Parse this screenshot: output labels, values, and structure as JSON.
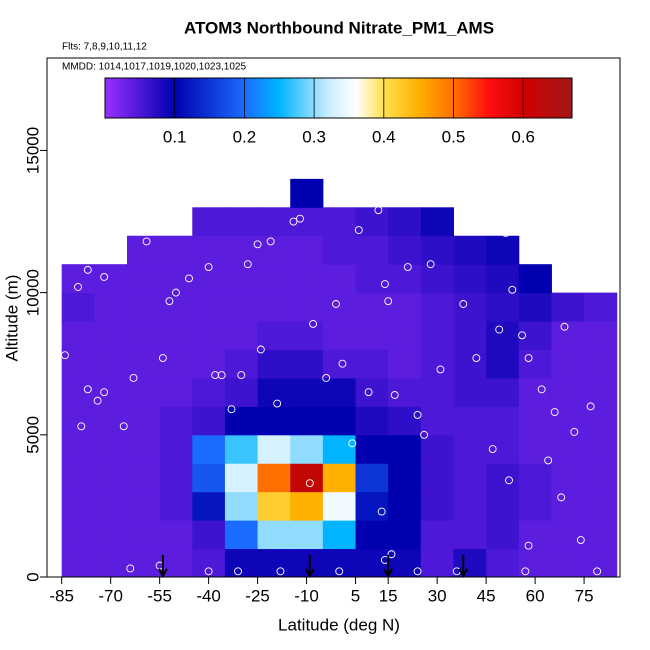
{
  "chart_data": {
    "type": "heatmap",
    "title": "ATOM3 Northbound Nitrate_PM1_AMS",
    "subtitle_flights": "Flts: 7,8,9,10,11,12",
    "subtitle_dates": "MMDD: 1014,1017,1019,1020,1023,1025",
    "x_label": "Latitude (deg N)",
    "y_label": "Altitude (m)",
    "xlim": [
      -89.5,
      86
    ],
    "ylim": [
      0,
      18250
    ],
    "xticks": [
      -85,
      -70,
      -55,
      -40,
      -25,
      -10,
      5,
      15,
      30,
      45,
      60,
      75
    ],
    "yticks": [
      0,
      5000,
      10000,
      15000
    ],
    "x_bins": [
      -85,
      -75,
      -65,
      -55,
      -45,
      -35,
      -25,
      -15,
      -5,
      5,
      15,
      25,
      35,
      45,
      55,
      65,
      75,
      85
    ],
    "y_bins": [
      0,
      1000,
      2000,
      3000,
      4000,
      5000,
      6000,
      7000,
      8000,
      9000,
      10000,
      11000,
      12000,
      13000,
      14000
    ],
    "z": [
      [
        0.04,
        0.04,
        0.04,
        0.04,
        0.05,
        0.09,
        0.09,
        0.09,
        0.09,
        0.09,
        0.09,
        0.05,
        0.08,
        0.05,
        0.04,
        0.04,
        0.04
      ],
      [
        0.04,
        0.04,
        0.04,
        0.04,
        0.06,
        0.2,
        0.3,
        0.3,
        0.25,
        0.1,
        0.1,
        0.05,
        0.05,
        0.06,
        0.04,
        0.04,
        0.04
      ],
      [
        0.04,
        0.04,
        0.04,
        0.05,
        0.12,
        0.3,
        0.42,
        0.45,
        0.35,
        0.12,
        0.1,
        0.06,
        0.05,
        0.06,
        0.05,
        0.04,
        0.04
      ],
      [
        0.04,
        0.04,
        0.04,
        0.05,
        0.18,
        0.33,
        0.5,
        0.62,
        0.45,
        0.15,
        0.1,
        0.06,
        0.05,
        0.06,
        0.05,
        0.04,
        0.04
      ],
      [
        0.04,
        0.04,
        0.04,
        0.05,
        0.2,
        0.27,
        0.33,
        0.3,
        0.25,
        0.1,
        0.1,
        0.06,
        0.05,
        0.05,
        0.04,
        0.04,
        0.04
      ],
      [
        0.04,
        0.04,
        0.04,
        0.05,
        0.06,
        0.1,
        0.1,
        0.1,
        0.1,
        0.08,
        0.07,
        0.05,
        0.05,
        0.05,
        0.04,
        0.04,
        0.04
      ],
      [
        0.04,
        0.04,
        0.04,
        0.04,
        0.05,
        0.06,
        0.09,
        0.09,
        0.09,
        0.06,
        0.05,
        0.05,
        0.06,
        0.06,
        0.04,
        0.04,
        0.04
      ],
      [
        0.04,
        0.04,
        0.04,
        0.04,
        0.04,
        0.05,
        0.07,
        0.07,
        0.05,
        0.05,
        0.04,
        0.05,
        0.06,
        0.08,
        0.05,
        0.04,
        0.04
      ],
      [
        0.04,
        0.04,
        0.04,
        0.04,
        0.04,
        0.04,
        0.05,
        0.05,
        0.04,
        0.04,
        0.04,
        0.05,
        0.06,
        0.08,
        0.06,
        0.04,
        0.04
      ],
      [
        0.05,
        0.04,
        0.04,
        0.04,
        0.04,
        0.04,
        0.04,
        0.04,
        0.04,
        0.04,
        0.04,
        0.05,
        0.06,
        0.07,
        0.08,
        0.06,
        0.05
      ],
      [
        0.04,
        0.04,
        0.04,
        0.04,
        0.04,
        0.04,
        0.04,
        0.04,
        0.04,
        0.05,
        0.05,
        0.06,
        0.07,
        0.08,
        0.1,
        null,
        null
      ],
      [
        null,
        null,
        0.04,
        0.04,
        0.04,
        0.04,
        0.04,
        0.04,
        0.05,
        0.05,
        0.06,
        0.07,
        0.08,
        0.09,
        null,
        null,
        null
      ],
      [
        null,
        null,
        null,
        null,
        0.05,
        0.05,
        0.05,
        0.05,
        0.05,
        0.06,
        0.07,
        0.09,
        null,
        null,
        null,
        null,
        null
      ],
      [
        null,
        null,
        null,
        null,
        null,
        null,
        null,
        0.1,
        null,
        null,
        null,
        null,
        null,
        null,
        null,
        null,
        null
      ]
    ],
    "clim": [
      0,
      0.67
    ],
    "cticks": [
      0.1,
      0.2,
      0.3,
      0.4,
      0.5,
      0.6
    ],
    "colorscale": [
      [
        0,
        "#9a30ff"
      ],
      [
        0.1,
        "#0000b0"
      ],
      [
        0.2,
        "#1a6bff"
      ],
      [
        0.25,
        "#00b4ff"
      ],
      [
        0.32,
        "#c8ecff"
      ],
      [
        0.36,
        "#ffffff"
      ],
      [
        0.4,
        "#ffe050"
      ],
      [
        0.45,
        "#ffb000"
      ],
      [
        0.5,
        "#ff7000"
      ],
      [
        0.55,
        "#ff1010"
      ],
      [
        0.6,
        "#d00000"
      ],
      [
        0.67,
        "#a01818"
      ]
    ],
    "points": {
      "x": [
        -80,
        -77,
        -72,
        -84,
        -77,
        -74,
        -72,
        -79,
        -66,
        -63,
        -59,
        -54,
        -52,
        -50,
        -46,
        -40,
        -38,
        -36,
        -33,
        -30,
        -28,
        -25,
        -24,
        -21,
        -19,
        -14,
        -12,
        -8,
        -4,
        -1,
        1,
        4,
        6,
        9,
        12,
        14,
        15,
        17,
        21,
        24,
        28,
        31,
        38,
        40,
        42,
        49,
        51,
        53,
        56,
        58,
        62,
        66,
        69,
        72,
        77,
        -55,
        -31,
        -9,
        13,
        14,
        16,
        26,
        47,
        52,
        58,
        64,
        68,
        74,
        -64,
        -40,
        -18,
        0,
        24,
        36,
        57,
        79
      ],
      "y": [
        10200,
        10800,
        10550,
        7800,
        6600,
        6200,
        6500,
        5300,
        5300,
        7000,
        11800,
        7700,
        9700,
        10000,
        10500,
        10900,
        7100,
        7100,
        5900,
        7100,
        11000,
        11700,
        8000,
        11800,
        6100,
        12500,
        12600,
        8900,
        7000,
        9600,
        7500,
        4700,
        12200,
        6500,
        12900,
        10300,
        9700,
        6400,
        10900,
        5700,
        11000,
        7300,
        9600,
        12300,
        7700,
        8700,
        12100,
        10100,
        8500,
        7700,
        6600,
        5800,
        8800,
        5100,
        6000,
        400,
        200,
        3300,
        2300,
        600,
        800,
        5000,
        4500,
        3400,
        1100,
        4100,
        2800,
        1300,
        300,
        200,
        200,
        200,
        200,
        200,
        200,
        200
      ]
    },
    "arrows": [
      -54,
      -9,
      15,
      38
    ]
  }
}
